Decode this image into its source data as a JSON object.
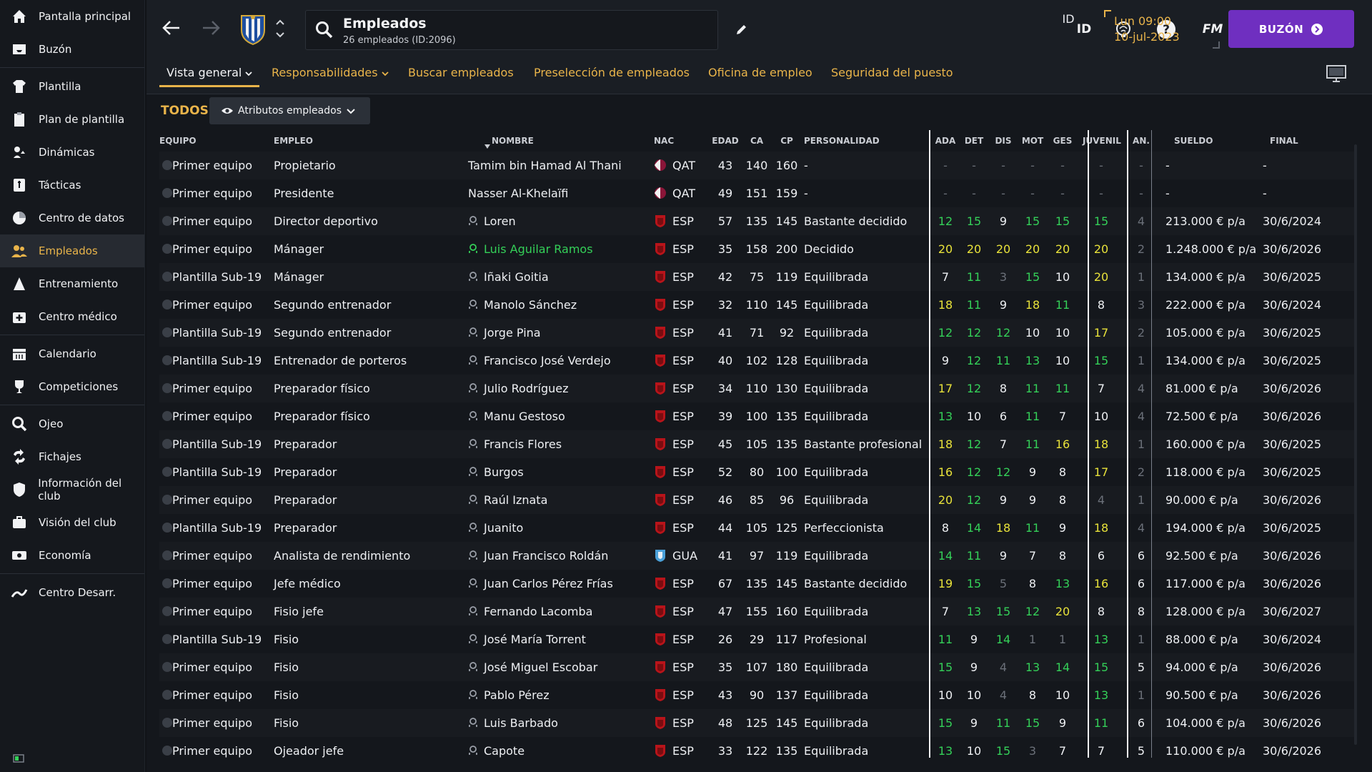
{
  "sidebar": {
    "items": [
      {
        "label": "Pantalla principal",
        "icon": "home-icon"
      },
      {
        "label": "Buzón",
        "icon": "inbox-icon"
      },
      {
        "label": "Plantilla",
        "icon": "shirt-icon"
      },
      {
        "label": "Plan de plantilla",
        "icon": "clipboard-icon"
      },
      {
        "label": "Dinámicas",
        "icon": "dynamics-icon"
      },
      {
        "label": "Tácticas",
        "icon": "tactics-icon"
      },
      {
        "label": "Centro de datos",
        "icon": "data-icon"
      },
      {
        "label": "Empleados",
        "icon": "staff-icon"
      },
      {
        "label": "Entrenamiento",
        "icon": "training-icon"
      },
      {
        "label": "Centro médico",
        "icon": "medical-icon"
      },
      {
        "label": "Calendario",
        "icon": "calendar-icon"
      },
      {
        "label": "Competiciones",
        "icon": "trophy-icon"
      },
      {
        "label": "Ojeo",
        "icon": "scout-icon"
      },
      {
        "label": "Fichajes",
        "icon": "transfer-icon"
      },
      {
        "label": "Información del club",
        "icon": "shield-icon"
      },
      {
        "label": "Visión del club",
        "icon": "briefcase-icon"
      },
      {
        "label": "Economía",
        "icon": "money-icon"
      },
      {
        "label": "Centro Desarr.",
        "icon": "development-icon"
      }
    ],
    "active_index": 7
  },
  "topbar": {
    "title": "Empleados",
    "subtitle": "26 empleados (ID:2096)",
    "id_label": "ID",
    "fm_label": "FM",
    "date_line1": "Lun 09:00",
    "date_line2": "10-jul-2023",
    "buzon_label": "BUZÓN"
  },
  "tabs": [
    {
      "label": "Vista general",
      "active": true
    },
    {
      "label": "Responsabilidades"
    },
    {
      "label": "Buscar empleados"
    },
    {
      "label": "Preselección de empleados"
    },
    {
      "label": "Oficina de empleo"
    },
    {
      "label": "Seguridad del puesto"
    }
  ],
  "filter": {
    "todos": "TODOS",
    "dropdown_label": "Atributos empleados"
  },
  "table": {
    "headers": {
      "equipo": "EQUIPO",
      "empleo": "EMPLEO",
      "nombre": "NOMBRE",
      "nac": "NAC",
      "edad": "EDAD",
      "ca": "CA",
      "cp": "CP",
      "personalidad": "PERSONALIDAD",
      "ada": "ADA",
      "det": "DET",
      "dis": "DIS",
      "mot": "MOT",
      "ges": "GES",
      "juvenil": "JUVENIL",
      "and": "AN. D",
      "sueldo": "SUELDO",
      "final": "FINAL"
    },
    "colors": {
      "green": "#34d058",
      "yellow": "#e8e23a",
      "white": "#eef0f3",
      "grey": "#6b7079"
    },
    "rows": [
      {
        "equipo": "Primer equipo",
        "empleo": "Propietario",
        "nombre": "Tamim bin Hamad Al Thani",
        "nac": "QAT",
        "flag": "qatar",
        "edad": "43",
        "ca": "140",
        "cp": "160",
        "pers": "-",
        "ada": "-",
        "det": "-",
        "dis": "-",
        "mot": "-",
        "ges": "-",
        "juv": "-",
        "and": "-",
        "sueldo": "-",
        "final": "-",
        "noicon": true
      },
      {
        "equipo": "Primer equipo",
        "empleo": "Presidente",
        "nombre": "Nasser Al-Khelaïfi",
        "nac": "QAT",
        "flag": "qatar",
        "edad": "49",
        "ca": "151",
        "cp": "159",
        "pers": "-",
        "ada": "-",
        "det": "-",
        "dis": "-",
        "mot": "-",
        "ges": "-",
        "juv": "-",
        "and": "-",
        "sueldo": "-",
        "final": "-",
        "noicon": true
      },
      {
        "equipo": "Primer equipo",
        "empleo": "Director deportivo",
        "nombre": "Loren",
        "nac": "ESP",
        "flag": "spain",
        "edad": "57",
        "ca": "135",
        "cp": "145",
        "pers": "Bastante decidido",
        "ada": "12",
        "det": "15",
        "dis": "9",
        "mot": "15",
        "ges": "15",
        "juv": "15",
        "and": "4",
        "sueldo": "213.000 € p/a",
        "final": "30/6/2024"
      },
      {
        "equipo": "Primer equipo",
        "empleo": "Mánager",
        "nombre": "Luis Aguilar Ramos",
        "nac": "ESP",
        "flag": "spain",
        "edad": "35",
        "ca": "158",
        "cp": "200",
        "pers": "Decidido",
        "ada": "20",
        "det": "20",
        "dis": "20",
        "mot": "20",
        "ges": "20",
        "juv": "20",
        "and": "2",
        "sueldo": "1.248.000 € p/a",
        "final": "30/6/2026",
        "highlight": true
      },
      {
        "equipo": "Plantilla Sub-19",
        "empleo": "Mánager",
        "nombre": "Iñaki Goitia",
        "nac": "ESP",
        "flag": "spain",
        "edad": "42",
        "ca": "75",
        "cp": "119",
        "pers": "Equilibrada",
        "ada": "7",
        "det": "11",
        "dis": "3",
        "mot": "15",
        "ges": "10",
        "juv": "20",
        "and": "1",
        "sueldo": "134.000 € p/a",
        "final": "30/6/2025"
      },
      {
        "equipo": "Primer equipo",
        "empleo": "Segundo entrenador",
        "nombre": "Manolo Sánchez",
        "nac": "ESP",
        "flag": "spain",
        "edad": "32",
        "ca": "110",
        "cp": "145",
        "pers": "Equilibrada",
        "ada": "18",
        "det": "11",
        "dis": "9",
        "mot": "18",
        "ges": "11",
        "juv": "8",
        "and": "3",
        "sueldo": "222.000 € p/a",
        "final": "30/6/2024"
      },
      {
        "equipo": "Plantilla Sub-19",
        "empleo": "Segundo entrenador",
        "nombre": "Jorge Pina",
        "nac": "ESP",
        "flag": "spain",
        "edad": "41",
        "ca": "71",
        "cp": "92",
        "pers": "Equilibrada",
        "ada": "12",
        "det": "12",
        "dis": "12",
        "mot": "10",
        "ges": "10",
        "juv": "17",
        "and": "2",
        "sueldo": "105.000 € p/a",
        "final": "30/6/2025"
      },
      {
        "equipo": "Plantilla Sub-19",
        "empleo": "Entrenador de porteros",
        "nombre": "Francisco José Verdejo",
        "nac": "ESP",
        "flag": "spain",
        "edad": "40",
        "ca": "102",
        "cp": "128",
        "pers": "Equilibrada",
        "ada": "9",
        "det": "12",
        "dis": "11",
        "mot": "13",
        "ges": "10",
        "juv": "15",
        "and": "1",
        "sueldo": "134.000 € p/a",
        "final": "30/6/2025"
      },
      {
        "equipo": "Primer equipo",
        "empleo": "Preparador físico",
        "nombre": "Julio Rodríguez",
        "nac": "ESP",
        "flag": "spain",
        "edad": "34",
        "ca": "110",
        "cp": "130",
        "pers": "Equilibrada",
        "ada": "17",
        "det": "12",
        "dis": "8",
        "mot": "11",
        "ges": "11",
        "juv": "7",
        "and": "4",
        "sueldo": "81.000 € p/a",
        "final": "30/6/2026"
      },
      {
        "equipo": "Primer equipo",
        "empleo": "Preparador físico",
        "nombre": "Manu Gestoso",
        "nac": "ESP",
        "flag": "spain",
        "edad": "39",
        "ca": "100",
        "cp": "135",
        "pers": "Equilibrada",
        "ada": "13",
        "det": "10",
        "dis": "6",
        "mot": "11",
        "ges": "7",
        "juv": "10",
        "and": "4",
        "sueldo": "72.500 € p/a",
        "final": "30/6/2026"
      },
      {
        "equipo": "Plantilla Sub-19",
        "empleo": "Preparador",
        "nombre": "Francis Flores",
        "nac": "ESP",
        "flag": "spain",
        "edad": "45",
        "ca": "105",
        "cp": "135",
        "pers": "Bastante profesional",
        "ada": "18",
        "det": "12",
        "dis": "7",
        "mot": "11",
        "ges": "16",
        "juv": "18",
        "and": "1",
        "sueldo": "160.000 € p/a",
        "final": "30/6/2025"
      },
      {
        "equipo": "Plantilla Sub-19",
        "empleo": "Preparador",
        "nombre": "Burgos",
        "nac": "ESP",
        "flag": "spain",
        "edad": "52",
        "ca": "80",
        "cp": "100",
        "pers": "Equilibrada",
        "ada": "16",
        "det": "12",
        "dis": "12",
        "mot": "9",
        "ges": "8",
        "juv": "17",
        "and": "2",
        "sueldo": "118.000 € p/a",
        "final": "30/6/2025"
      },
      {
        "equipo": "Primer equipo",
        "empleo": "Preparador",
        "nombre": "Raúl Iznata",
        "nac": "ESP",
        "flag": "spain",
        "edad": "46",
        "ca": "85",
        "cp": "96",
        "pers": "Equilibrada",
        "ada": "20",
        "det": "12",
        "dis": "9",
        "mot": "9",
        "ges": "8",
        "juv": "4",
        "and": "1",
        "sueldo": "90.000 € p/a",
        "final": "30/6/2026"
      },
      {
        "equipo": "Plantilla Sub-19",
        "empleo": "Preparador",
        "nombre": "Juanito",
        "nac": "ESP",
        "flag": "spain",
        "edad": "44",
        "ca": "105",
        "cp": "125",
        "pers": "Perfeccionista",
        "ada": "8",
        "det": "14",
        "dis": "18",
        "mot": "11",
        "ges": "9",
        "juv": "18",
        "and": "4",
        "sueldo": "194.000 € p/a",
        "final": "30/6/2025"
      },
      {
        "equipo": "Primer equipo",
        "empleo": "Analista de rendimiento",
        "nombre": "Juan Francisco Roldán",
        "nac": "GUA",
        "flag": "guatemala",
        "edad": "41",
        "ca": "97",
        "cp": "119",
        "pers": "Equilibrada",
        "ada": "14",
        "det": "11",
        "dis": "9",
        "mot": "7",
        "ges": "8",
        "juv": "6",
        "and": "6",
        "sueldo": "92.500 € p/a",
        "final": "30/6/2026"
      },
      {
        "equipo": "Primer equipo",
        "empleo": "Jefe médico",
        "nombre": "Juan Carlos Pérez Frías",
        "nac": "ESP",
        "flag": "spain",
        "edad": "67",
        "ca": "135",
        "cp": "145",
        "pers": "Bastante decidido",
        "ada": "19",
        "det": "15",
        "dis": "5",
        "mot": "8",
        "ges": "13",
        "juv": "16",
        "and": "6",
        "sueldo": "117.000 € p/a",
        "final": "30/6/2026"
      },
      {
        "equipo": "Primer equipo",
        "empleo": "Fisio jefe",
        "nombre": "Fernando Lacomba",
        "nac": "ESP",
        "flag": "spain",
        "edad": "47",
        "ca": "155",
        "cp": "160",
        "pers": "Equilibrada",
        "ada": "7",
        "det": "13",
        "dis": "15",
        "mot": "12",
        "ges": "20",
        "juv": "8",
        "and": "8",
        "sueldo": "128.000 € p/a",
        "final": "30/6/2027"
      },
      {
        "equipo": "Plantilla Sub-19",
        "empleo": "Fisio",
        "nombre": "José María Torrent",
        "nac": "ESP",
        "flag": "spain",
        "edad": "26",
        "ca": "29",
        "cp": "117",
        "pers": "Profesional",
        "ada": "11",
        "det": "9",
        "dis": "14",
        "mot": "1",
        "ges": "1",
        "juv": "13",
        "and": "1",
        "sueldo": "88.000 € p/a",
        "final": "30/6/2024"
      },
      {
        "equipo": "Primer equipo",
        "empleo": "Fisio",
        "nombre": "José Miguel Escobar",
        "nac": "ESP",
        "flag": "spain",
        "edad": "35",
        "ca": "107",
        "cp": "180",
        "pers": "Equilibrada",
        "ada": "15",
        "det": "9",
        "dis": "4",
        "mot": "13",
        "ges": "14",
        "juv": "15",
        "and": "5",
        "sueldo": "94.000 € p/a",
        "final": "30/6/2026"
      },
      {
        "equipo": "Primer equipo",
        "empleo": "Fisio",
        "nombre": "Pablo Pérez",
        "nac": "ESP",
        "flag": "spain",
        "edad": "43",
        "ca": "90",
        "cp": "137",
        "pers": "Equilibrada",
        "ada": "10",
        "det": "10",
        "dis": "4",
        "mot": "8",
        "ges": "10",
        "juv": "13",
        "and": "1",
        "sueldo": "90.500 € p/a",
        "final": "30/6/2026"
      },
      {
        "equipo": "Primer equipo",
        "empleo": "Fisio",
        "nombre": "Luis Barbado",
        "nac": "ESP",
        "flag": "spain",
        "edad": "48",
        "ca": "125",
        "cp": "145",
        "pers": "Equilibrada",
        "ada": "15",
        "det": "9",
        "dis": "11",
        "mot": "15",
        "ges": "9",
        "juv": "11",
        "and": "6",
        "sueldo": "104.000 € p/a",
        "final": "30/6/2026"
      },
      {
        "equipo": "Primer equipo",
        "empleo": "Ojeador jefe",
        "nombre": "Capote",
        "nac": "ESP",
        "flag": "spain",
        "edad": "33",
        "ca": "122",
        "cp": "135",
        "pers": "Equilibrada",
        "ada": "13",
        "det": "10",
        "dis": "15",
        "mot": "3",
        "ges": "7",
        "juv": "7",
        "and": "5",
        "sueldo": "110.000 € p/a",
        "final": "30/6/2026"
      }
    ]
  }
}
